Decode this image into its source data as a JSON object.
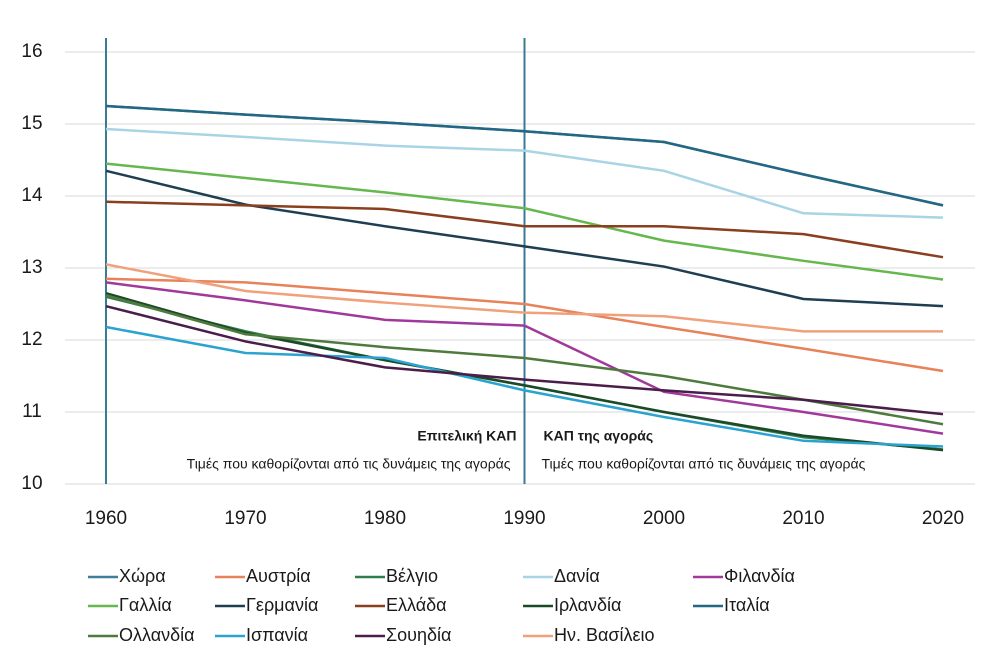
{
  "chart_data": {
    "type": "line",
    "x": [
      1960,
      1970,
      1980,
      1990,
      2000,
      2010,
      2020
    ],
    "xlim": [
      1960,
      2020
    ],
    "xticks": [
      1960,
      1970,
      1980,
      1990,
      2000,
      2010,
      2020
    ],
    "ylim": [
      10,
      16
    ],
    "yticks": [
      10,
      11,
      12,
      13,
      14,
      15,
      16
    ],
    "grid": true,
    "vlines": [
      1960,
      1990
    ],
    "annotations": [
      {
        "title": "Επιτελική ΚΑΠ",
        "text": "Τιμές που καθορίζονται από τις δυνάμεις της αγοράς",
        "x": 1990,
        "side": "left"
      },
      {
        "title": "ΚΑΠ της αγοράς",
        "text": "Τιμές που καθορίζονται από τις δυνάμεις της αγοράς",
        "x": 1990,
        "side": "right"
      }
    ],
    "legend": "bottom",
    "series": [
      {
        "name": "Χώρα",
        "color": "#3f7f99",
        "values": [
          15.25,
          15.13,
          15.02,
          14.9,
          14.75,
          14.3,
          13.87
        ]
      },
      {
        "name": "Αυστρία",
        "color": "#e8825a",
        "values": [
          12.85,
          12.8,
          12.65,
          12.5,
          12.18,
          11.88,
          11.57
        ]
      },
      {
        "name": "Βέλγιο",
        "color": "#2e7d4f",
        "values": [
          12.6,
          12.12,
          11.72,
          11.37,
          11.0,
          10.65,
          10.48
        ]
      },
      {
        "name": "Δανία",
        "color": "#a8d4e6",
        "values": [
          14.93,
          14.82,
          14.7,
          14.63,
          14.35,
          13.76,
          13.7
        ]
      },
      {
        "name": "Φιλανδία",
        "color": "#a0399b",
        "values": [
          12.8,
          12.55,
          12.28,
          12.2,
          11.28,
          11.0,
          10.7
        ]
      },
      {
        "name": "Γαλλία",
        "color": "#66b74e",
        "values": [
          14.45,
          14.25,
          14.05,
          13.83,
          13.38,
          13.1,
          12.84
        ]
      },
      {
        "name": "Γερμανία",
        "color": "#1f3e52",
        "values": [
          14.35,
          13.88,
          13.58,
          13.3,
          13.02,
          12.57,
          12.47
        ]
      },
      {
        "name": "Ελλάδα",
        "color": "#8a3f1f",
        "values": [
          13.92,
          13.87,
          13.82,
          13.58,
          13.58,
          13.47,
          13.15
        ]
      },
      {
        "name": "Ιρλανδία",
        "color": "#1d4a26",
        "values": [
          12.65,
          12.1,
          11.72,
          11.37,
          11.0,
          10.67,
          10.47
        ]
      },
      {
        "name": "Ιταλία",
        "color": "#236783",
        "values": [
          15.25,
          15.13,
          15.02,
          14.9,
          14.75,
          14.3,
          13.87
        ]
      },
      {
        "name": "Ολλανδία",
        "color": "#4e7a3e",
        "values": [
          12.62,
          12.08,
          11.9,
          11.75,
          11.5,
          11.17,
          10.83
        ]
      },
      {
        "name": "Ισπανία",
        "color": "#2aa3d0",
        "values": [
          12.18,
          11.82,
          11.75,
          11.3,
          10.93,
          10.6,
          10.52
        ]
      },
      {
        "name": "Σουηδία",
        "color": "#4a1d4a",
        "values": [
          12.47,
          11.98,
          11.62,
          11.45,
          11.3,
          11.17,
          10.97
        ]
      },
      {
        "name": "Ην. Βασίλειο",
        "color": "#f0a07a",
        "values": [
          13.05,
          12.68,
          12.52,
          12.38,
          12.33,
          12.12,
          12.12
        ]
      }
    ]
  }
}
